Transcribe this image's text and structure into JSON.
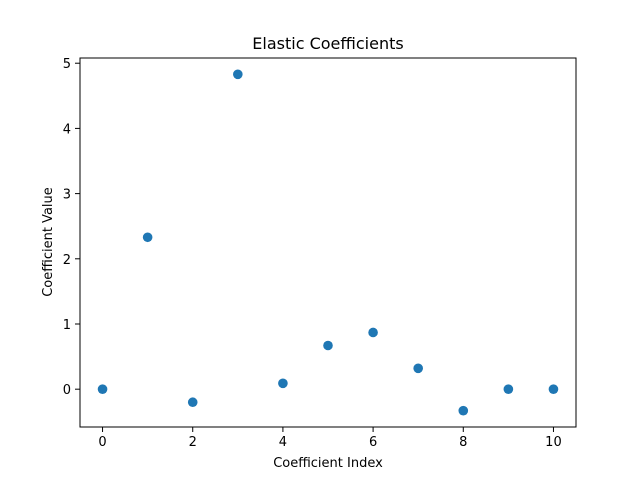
{
  "chart_data": {
    "type": "scatter",
    "title": "Elastic Coefficients",
    "xlabel": "Coefficient Index",
    "ylabel": "Coefficient Value",
    "x": [
      0,
      1,
      2,
      3,
      4,
      5,
      6,
      7,
      8,
      9,
      10
    ],
    "y": [
      0.0,
      2.33,
      -0.2,
      4.83,
      0.09,
      0.67,
      0.87,
      0.32,
      -0.33,
      0.0,
      0.0
    ],
    "xlim": [
      -0.5,
      10.5
    ],
    "ylim": [
      -0.58,
      5.08
    ],
    "xticks": [
      0,
      2,
      4,
      6,
      8,
      10
    ],
    "yticks": [
      0,
      1,
      2,
      3,
      4,
      5
    ],
    "grid": false,
    "marker_color": "#1f77b4"
  }
}
